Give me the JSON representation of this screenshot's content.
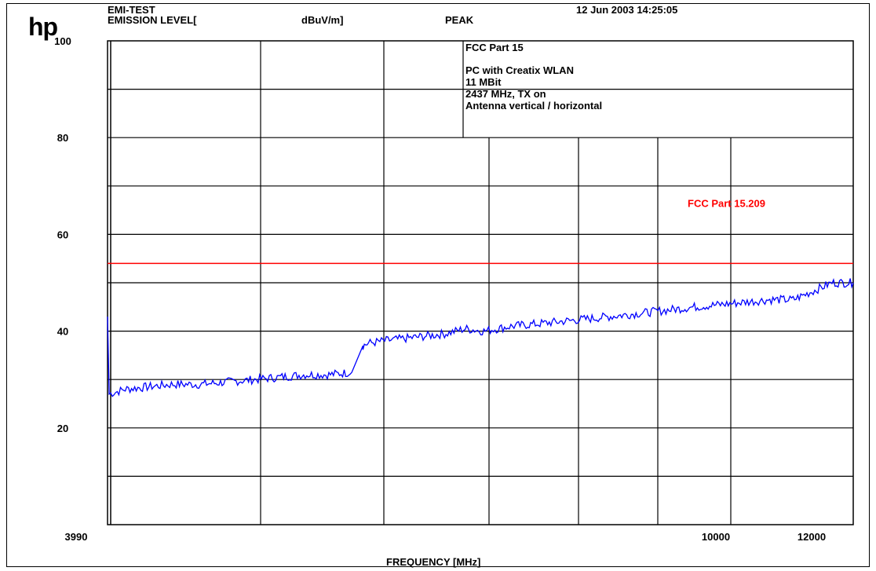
{
  "header": {
    "logo": "hp",
    "test_name": "EMI-TEST",
    "level_label": "EMISSION LEVEL[",
    "unit_label": "dBuV/m]",
    "detector": "PEAK",
    "timestamp": "12 Jun 2003  14:25:05"
  },
  "info_box": {
    "line1": "FCC Part 15",
    "line2": "PC with Creatix WLAN",
    "line3": "11 MBit",
    "line4": "2437 MHz, TX on",
    "line5": "Antenna vertical / horizontal"
  },
  "colors": {
    "trace": "#0000ff",
    "limit": "#ff0000",
    "detector": "#0000ff",
    "grid": "#000000"
  },
  "chart_data": {
    "type": "line",
    "title": "",
    "xlabel": "FREQUENCY [MHz]",
    "ylabel": "EMISSION LEVEL[ dBuV/m]",
    "x_scale": "log",
    "xlim": [
      3990,
      12500
    ],
    "ylim": [
      0,
      100
    ],
    "x_tick_labels": [
      {
        "value": 3990,
        "label": "3990"
      },
      {
        "value": 10000,
        "label": "10000"
      },
      {
        "value": 12000,
        "label": "12000"
      }
    ],
    "y_tick_labels": [
      {
        "value": 100,
        "label": "100"
      },
      {
        "value": 80,
        "label": "80"
      },
      {
        "value": 60,
        "label": "60"
      },
      {
        "value": 40,
        "label": "40"
      },
      {
        "value": 20,
        "label": "20"
      }
    ],
    "grid": true,
    "limit_line": {
      "name": "FCC Part 15.209",
      "value": 54
    },
    "series": [
      {
        "name": "PEAK",
        "x": [
          3990,
          4000,
          4100,
          4250,
          4400,
          4600,
          4800,
          5000,
          5200,
          5400,
          5600,
          5800,
          5900,
          5950,
          6100,
          6300,
          6500,
          6700,
          6900,
          7100,
          7400,
          7700,
          8000,
          8300,
          8600,
          8900,
          9200,
          9500,
          9800,
          10200,
          10600,
          11000,
          11400,
          11700,
          12100,
          12500
        ],
        "values": [
          43,
          27,
          28,
          28.5,
          29,
          29,
          29.5,
          30,
          30.5,
          31,
          31,
          31.5,
          37,
          37.5,
          38,
          38.5,
          39,
          39.5,
          40.5,
          40,
          41,
          41.5,
          42,
          42.5,
          43,
          43.5,
          44,
          44.5,
          45,
          45.5,
          46,
          46.5,
          46.5,
          48,
          50,
          50
        ]
      }
    ]
  },
  "axes_labels": {
    "y_ticks": [
      "100",
      "80",
      "60",
      "40",
      "20"
    ],
    "x_ticks": [
      "3990",
      "10000",
      "12000"
    ]
  }
}
